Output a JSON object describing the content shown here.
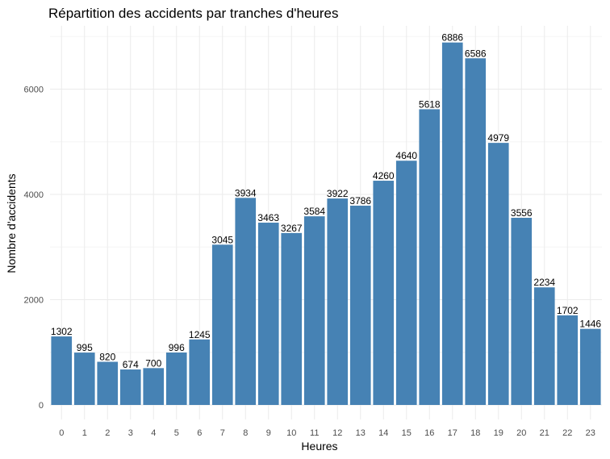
{
  "chart_data": {
    "type": "bar",
    "title": "Répartition des accidents par tranches d'heures",
    "xlabel": "Heures",
    "ylabel": "Nombre d'accidents",
    "categories": [
      "0",
      "1",
      "2",
      "3",
      "4",
      "5",
      "6",
      "7",
      "8",
      "9",
      "10",
      "11",
      "12",
      "13",
      "14",
      "15",
      "16",
      "17",
      "18",
      "19",
      "20",
      "21",
      "22",
      "23"
    ],
    "values": [
      1302,
      995,
      820,
      674,
      700,
      996,
      1245,
      3045,
      3934,
      3463,
      3267,
      3584,
      3922,
      3786,
      4260,
      4640,
      5618,
      6886,
      6586,
      4979,
      3556,
      2234,
      1702,
      1446
    ],
    "data_labels": [
      "1302",
      "995",
      "820",
      "674",
      "700",
      "996",
      "1245",
      "3045",
      "3934",
      "3463",
      "3267",
      "3584",
      "3922",
      "3786",
      "4260",
      "4640",
      "5618",
      "6886",
      "6586",
      "4979",
      "3556",
      "2234",
      "1702",
      "1446"
    ],
    "y_ticks": [
      0,
      2000,
      4000,
      6000
    ],
    "y_tick_labels": [
      "0",
      "2000",
      "4000",
      "6000"
    ],
    "ylim": [
      0,
      7200
    ],
    "grid": true,
    "legend": "none",
    "colors": {
      "bar": "#4682B4",
      "grid_major": "#ebebeb",
      "grid_minor": "#f5f5f5",
      "tick_text": "#4d4d4d",
      "text": "#000000"
    }
  }
}
